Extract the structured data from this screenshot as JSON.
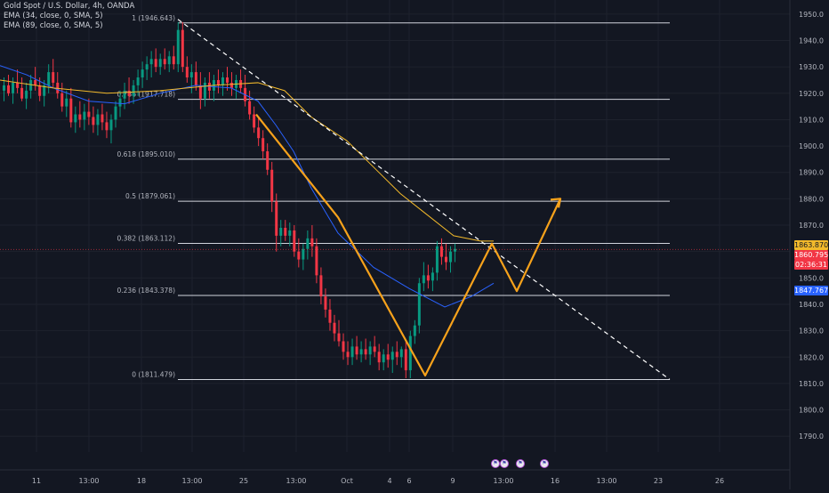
{
  "legend": {
    "title": "Gold Spot / U.S. Dollar, 4h, OANDA",
    "ema1": "EMA (34, close, 0, SMA, 5)",
    "ema2": "EMA (89, close, 0, SMA, 5)"
  },
  "price_tags": {
    "ema89_value": "1863.870",
    "last_price": "1860.795",
    "countdown": "02:36:31",
    "ema34_value": "1847.767"
  },
  "colors": {
    "background": "#131722",
    "bull": "#089981",
    "bear": "#f23645",
    "ema34": "#2962ff",
    "ema89": "#f2b92b",
    "projection": "#f7a21b",
    "fib_line": "#d1d4dc",
    "trendline": "#ffffff"
  },
  "events": [
    {
      "icon": "flag-icon",
      "label": "⚑"
    },
    {
      "icon": "flag-icon",
      "label": "⚑"
    },
    {
      "icon": "flag-icon",
      "label": "⚑"
    },
    {
      "icon": "flag-icon",
      "label": "⚑"
    }
  ],
  "chart_data": {
    "type": "candlestick",
    "symbol": "Gold Spot / U.S. Dollar",
    "timeframe": "4h",
    "ylim": [
      1784,
      1954
    ],
    "y_ticks": [
      1790,
      1800,
      1810,
      1820,
      1830,
      1840,
      1850,
      1860,
      1870,
      1880,
      1890,
      1900,
      1910,
      1920,
      1930,
      1940,
      1950
    ],
    "x_ticks": [
      "11",
      "13:00",
      "18",
      "13:00",
      "25",
      "13:00",
      "Oct",
      "4",
      "6",
      "9",
      "13:00",
      "16",
      "13:00",
      "23",
      "26"
    ],
    "fib_levels": [
      {
        "label": "1 (1946.643)",
        "price": 1946.643
      },
      {
        "label": "0.786 (1917.718)",
        "price": 1917.718
      },
      {
        "label": "0.618 (1895.010)",
        "price": 1895.01
      },
      {
        "label": "0.5 (1879.061)",
        "price": 1879.061
      },
      {
        "label": "0.382 (1863.112)",
        "price": 1863.112
      },
      {
        "label": "0.236 (1843.378)",
        "price": 1843.378
      },
      {
        "label": "0 (1811.479)",
        "price": 1811.479
      }
    ],
    "series": [
      {
        "name": "EMA (34, close, 0, SMA, 5)",
        "color": "#2962ff",
        "points": [
          [
            0,
            1930.5
          ],
          [
            30,
            1927
          ],
          [
            60,
            1922
          ],
          [
            100,
            1917
          ],
          [
            140,
            1916
          ],
          [
            180,
            1920
          ],
          [
            220,
            1923
          ],
          [
            260,
            1922
          ],
          [
            290,
            1917
          ],
          [
            310,
            1908
          ],
          [
            330,
            1898
          ],
          [
            350,
            1884
          ],
          [
            380,
            1867
          ],
          [
            420,
            1854
          ],
          [
            460,
            1846
          ],
          [
            500,
            1839
          ],
          [
            530,
            1843
          ],
          [
            555,
            1848
          ]
        ]
      },
      {
        "name": "EMA (89, close, 0, SMA, 5)",
        "color": "#f2b92b",
        "points": [
          [
            0,
            1925
          ],
          [
            60,
            1922
          ],
          [
            120,
            1920
          ],
          [
            180,
            1921
          ],
          [
            240,
            1923
          ],
          [
            290,
            1924
          ],
          [
            320,
            1921
          ],
          [
            350,
            1911
          ],
          [
            390,
            1902
          ],
          [
            420,
            1892
          ],
          [
            450,
            1882
          ],
          [
            480,
            1874
          ],
          [
            510,
            1866
          ],
          [
            540,
            1864
          ],
          [
            555,
            1864
          ]
        ]
      }
    ],
    "candles": [
      {
        "o": 1921,
        "h": 1926,
        "l": 1917,
        "c": 1923
      },
      {
        "o": 1923,
        "h": 1927,
        "l": 1919,
        "c": 1920
      },
      {
        "o": 1920,
        "h": 1926,
        "l": 1916,
        "c": 1924
      },
      {
        "o": 1924,
        "h": 1929,
        "l": 1920,
        "c": 1922
      },
      {
        "o": 1922,
        "h": 1926,
        "l": 1917,
        "c": 1918
      },
      {
        "o": 1918,
        "h": 1924,
        "l": 1914,
        "c": 1921
      },
      {
        "o": 1921,
        "h": 1927,
        "l": 1918,
        "c": 1925
      },
      {
        "o": 1925,
        "h": 1930,
        "l": 1921,
        "c": 1923
      },
      {
        "o": 1923,
        "h": 1926,
        "l": 1917,
        "c": 1919
      },
      {
        "o": 1919,
        "h": 1925,
        "l": 1915,
        "c": 1923
      },
      {
        "o": 1923,
        "h": 1931,
        "l": 1920,
        "c": 1928
      },
      {
        "o": 1928,
        "h": 1933,
        "l": 1922,
        "c": 1924
      },
      {
        "o": 1924,
        "h": 1928,
        "l": 1918,
        "c": 1920
      },
      {
        "o": 1920,
        "h": 1924,
        "l": 1913,
        "c": 1915
      },
      {
        "o": 1915,
        "h": 1921,
        "l": 1911,
        "c": 1918
      },
      {
        "o": 1918,
        "h": 1922,
        "l": 1907,
        "c": 1909
      },
      {
        "o": 1909,
        "h": 1915,
        "l": 1905,
        "c": 1912
      },
      {
        "o": 1912,
        "h": 1917,
        "l": 1907,
        "c": 1910
      },
      {
        "o": 1910,
        "h": 1916,
        "l": 1906,
        "c": 1913
      },
      {
        "o": 1913,
        "h": 1918,
        "l": 1908,
        "c": 1911
      },
      {
        "o": 1911,
        "h": 1915,
        "l": 1905,
        "c": 1908
      },
      {
        "o": 1908,
        "h": 1914,
        "l": 1904,
        "c": 1912
      },
      {
        "o": 1912,
        "h": 1916,
        "l": 1906,
        "c": 1909
      },
      {
        "o": 1909,
        "h": 1913,
        "l": 1903,
        "c": 1906
      },
      {
        "o": 1906,
        "h": 1912,
        "l": 1901,
        "c": 1910
      },
      {
        "o": 1910,
        "h": 1917,
        "l": 1907,
        "c": 1915
      },
      {
        "o": 1915,
        "h": 1921,
        "l": 1911,
        "c": 1918
      },
      {
        "o": 1918,
        "h": 1924,
        "l": 1914,
        "c": 1921
      },
      {
        "o": 1921,
        "h": 1926,
        "l": 1916,
        "c": 1919
      },
      {
        "o": 1919,
        "h": 1925,
        "l": 1916,
        "c": 1923
      },
      {
        "o": 1923,
        "h": 1929,
        "l": 1919,
        "c": 1926
      },
      {
        "o": 1926,
        "h": 1932,
        "l": 1922,
        "c": 1929
      },
      {
        "o": 1929,
        "h": 1934,
        "l": 1925,
        "c": 1931
      },
      {
        "o": 1931,
        "h": 1936,
        "l": 1926,
        "c": 1933
      },
      {
        "o": 1933,
        "h": 1937,
        "l": 1928,
        "c": 1930
      },
      {
        "o": 1930,
        "h": 1935,
        "l": 1927,
        "c": 1933
      },
      {
        "o": 1933,
        "h": 1937,
        "l": 1929,
        "c": 1931
      },
      {
        "o": 1931,
        "h": 1936,
        "l": 1928,
        "c": 1934
      },
      {
        "o": 1934,
        "h": 1938,
        "l": 1929,
        "c": 1931
      },
      {
        "o": 1931,
        "h": 1947,
        "l": 1928,
        "c": 1944
      },
      {
        "o": 1944,
        "h": 1947,
        "l": 1928,
        "c": 1930
      },
      {
        "o": 1930,
        "h": 1934,
        "l": 1924,
        "c": 1926
      },
      {
        "o": 1926,
        "h": 1931,
        "l": 1920,
        "c": 1928
      },
      {
        "o": 1928,
        "h": 1932,
        "l": 1921,
        "c": 1923
      },
      {
        "o": 1923,
        "h": 1928,
        "l": 1914,
        "c": 1918
      },
      {
        "o": 1918,
        "h": 1926,
        "l": 1915,
        "c": 1924
      },
      {
        "o": 1924,
        "h": 1928,
        "l": 1918,
        "c": 1921
      },
      {
        "o": 1921,
        "h": 1927,
        "l": 1917,
        "c": 1925
      },
      {
        "o": 1925,
        "h": 1929,
        "l": 1920,
        "c": 1923
      },
      {
        "o": 1923,
        "h": 1928,
        "l": 1919,
        "c": 1926
      },
      {
        "o": 1926,
        "h": 1930,
        "l": 1921,
        "c": 1924
      },
      {
        "o": 1924,
        "h": 1928,
        "l": 1919,
        "c": 1922
      },
      {
        "o": 1922,
        "h": 1927,
        "l": 1918,
        "c": 1925
      },
      {
        "o": 1925,
        "h": 1929,
        "l": 1920,
        "c": 1922
      },
      {
        "o": 1922,
        "h": 1927,
        "l": 1915,
        "c": 1917
      },
      {
        "o": 1917,
        "h": 1921,
        "l": 1910,
        "c": 1912
      },
      {
        "o": 1912,
        "h": 1915,
        "l": 1905,
        "c": 1907
      },
      {
        "o": 1907,
        "h": 1911,
        "l": 1900,
        "c": 1903
      },
      {
        "o": 1903,
        "h": 1906,
        "l": 1895,
        "c": 1898
      },
      {
        "o": 1898,
        "h": 1901,
        "l": 1889,
        "c": 1891
      },
      {
        "o": 1891,
        "h": 1894,
        "l": 1875,
        "c": 1879
      },
      {
        "o": 1879,
        "h": 1882,
        "l": 1860,
        "c": 1866
      },
      {
        "o": 1866,
        "h": 1872,
        "l": 1862,
        "c": 1869
      },
      {
        "o": 1869,
        "h": 1872,
        "l": 1864,
        "c": 1866
      },
      {
        "o": 1866,
        "h": 1871,
        "l": 1862,
        "c": 1868
      },
      {
        "o": 1868,
        "h": 1870,
        "l": 1858,
        "c": 1860
      },
      {
        "o": 1860,
        "h": 1865,
        "l": 1854,
        "c": 1857
      },
      {
        "o": 1857,
        "h": 1863,
        "l": 1853,
        "c": 1861
      },
      {
        "o": 1861,
        "h": 1868,
        "l": 1857,
        "c": 1865
      },
      {
        "o": 1865,
        "h": 1870,
        "l": 1858,
        "c": 1862
      },
      {
        "o": 1862,
        "h": 1865,
        "l": 1848,
        "c": 1851
      },
      {
        "o": 1851,
        "h": 1854,
        "l": 1840,
        "c": 1843
      },
      {
        "o": 1843,
        "h": 1846,
        "l": 1835,
        "c": 1838
      },
      {
        "o": 1838,
        "h": 1842,
        "l": 1830,
        "c": 1833
      },
      {
        "o": 1833,
        "h": 1836,
        "l": 1826,
        "c": 1829
      },
      {
        "o": 1829,
        "h": 1834,
        "l": 1824,
        "c": 1826
      },
      {
        "o": 1826,
        "h": 1829,
        "l": 1819,
        "c": 1822
      },
      {
        "o": 1822,
        "h": 1826,
        "l": 1817,
        "c": 1820
      },
      {
        "o": 1820,
        "h": 1827,
        "l": 1817,
        "c": 1824
      },
      {
        "o": 1824,
        "h": 1828,
        "l": 1819,
        "c": 1821
      },
      {
        "o": 1821,
        "h": 1826,
        "l": 1818,
        "c": 1823
      },
      {
        "o": 1823,
        "h": 1827,
        "l": 1819,
        "c": 1821
      },
      {
        "o": 1821,
        "h": 1826,
        "l": 1817,
        "c": 1824
      },
      {
        "o": 1824,
        "h": 1828,
        "l": 1820,
        "c": 1822
      },
      {
        "o": 1822,
        "h": 1825,
        "l": 1815,
        "c": 1818
      },
      {
        "o": 1818,
        "h": 1823,
        "l": 1815,
        "c": 1821
      },
      {
        "o": 1821,
        "h": 1825,
        "l": 1816,
        "c": 1819
      },
      {
        "o": 1819,
        "h": 1824,
        "l": 1814,
        "c": 1822
      },
      {
        "o": 1822,
        "h": 1826,
        "l": 1817,
        "c": 1820
      },
      {
        "o": 1820,
        "h": 1824,
        "l": 1816,
        "c": 1823
      },
      {
        "o": 1823,
        "h": 1826,
        "l": 1812,
        "c": 1815
      },
      {
        "o": 1815,
        "h": 1830,
        "l": 1812,
        "c": 1828
      },
      {
        "o": 1828,
        "h": 1834,
        "l": 1825,
        "c": 1832
      },
      {
        "o": 1832,
        "h": 1850,
        "l": 1829,
        "c": 1848
      },
      {
        "o": 1848,
        "h": 1856,
        "l": 1845,
        "c": 1851
      },
      {
        "o": 1851,
        "h": 1855,
        "l": 1846,
        "c": 1849
      },
      {
        "o": 1849,
        "h": 1854,
        "l": 1845,
        "c": 1852
      },
      {
        "o": 1852,
        "h": 1864,
        "l": 1849,
        "c": 1862
      },
      {
        "o": 1862,
        "h": 1865,
        "l": 1855,
        "c": 1858
      },
      {
        "o": 1858,
        "h": 1863,
        "l": 1853,
        "c": 1856
      },
      {
        "o": 1856,
        "h": 1862,
        "l": 1852,
        "c": 1860
      },
      {
        "o": 1860,
        "h": 1863,
        "l": 1856,
        "c": 1861
      }
    ]
  }
}
